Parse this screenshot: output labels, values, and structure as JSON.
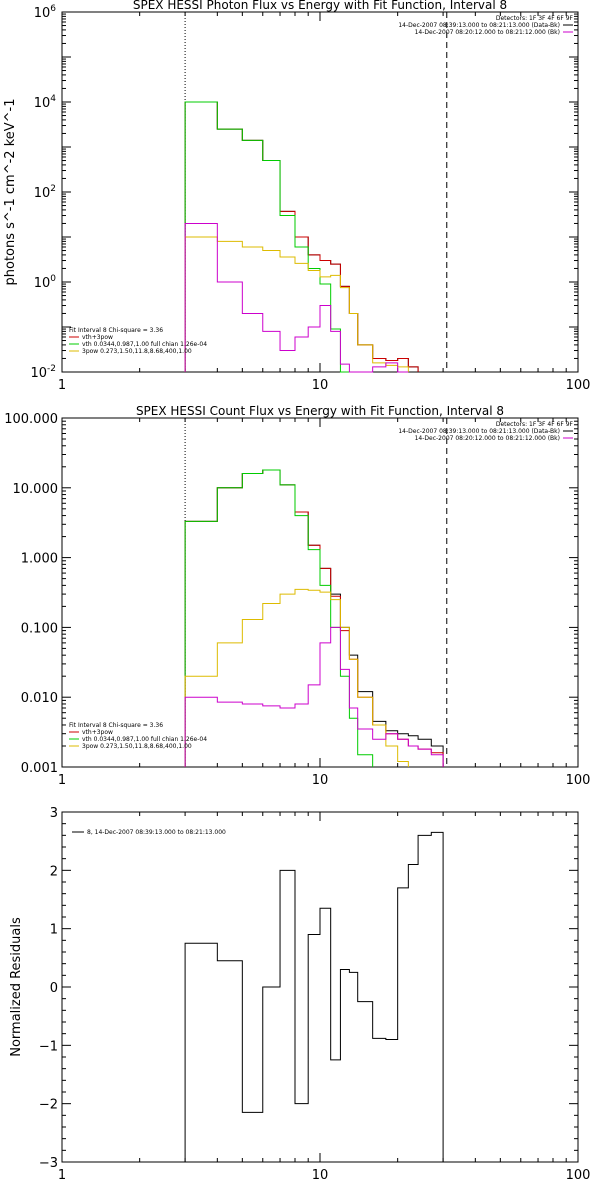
{
  "chart_data": [
    {
      "type": "line",
      "scale": "log-log",
      "title": "SPEX HESSI Photon Flux vs Energy with Fit Function, Interval 8",
      "ylabel": "photons s^-1 cm^-2 keV^-1",
      "xlim": [
        1,
        100
      ],
      "ylim": [
        0.01,
        1000000
      ],
      "xticks": [
        "1",
        "10",
        "100"
      ],
      "yticks": [
        {
          "value": 0.01,
          "base": "10",
          "exp": "-2"
        },
        {
          "value": 1,
          "base": "10",
          "exp": "0"
        },
        {
          "value": 100,
          "base": "10",
          "exp": "2"
        },
        {
          "value": 10000,
          "base": "10",
          "exp": "4"
        },
        {
          "value": 1000000,
          "base": "10",
          "exp": "6"
        }
      ],
      "vlines": [
        {
          "x": 3,
          "style": "dotted"
        },
        {
          "x": 31,
          "style": "dashed"
        }
      ],
      "legend_left": {
        "header": "Fit Interval 8   Chi-square = 3.36",
        "items": [
          {
            "label": "vth+3pow",
            "color": "#cc0000"
          },
          {
            "label": "vth 0.0344,0.987,1.00  full chian 1.26e-04",
            "color": "#00cc00"
          },
          {
            "label": "3pow 0.273,1.50,11.8,8.68,400,1.00",
            "color": "#ddbb00"
          }
        ]
      },
      "legend_right": {
        "header": "Detectors: 1F 3F 4F 6F 9F",
        "items": [
          {
            "label": "14-Dec-2007 08:39:13.000 to 08:21:13.000 (Data-Bk)",
            "color": "#000000"
          },
          {
            "label": "14-Dec-2007 08:20:12.000 to 08:21:12.000 (Bk)",
            "color": "#cc00cc"
          }
        ]
      },
      "edges": [
        3,
        4,
        5,
        6,
        7,
        8,
        9,
        10,
        11,
        12,
        13,
        14,
        16,
        18,
        20,
        22,
        24,
        27,
        30
      ],
      "series": [
        {
          "color": "#000000",
          "values": [
            10000,
            2500,
            1400,
            500,
            37,
            10,
            4,
            3,
            2.5,
            0.8,
            0.2,
            0.04,
            0.02,
            0.018,
            0.02,
            0.013,
            null,
            null
          ]
        },
        {
          "color": "#cc0000",
          "values": [
            10000,
            2500,
            1400,
            500,
            37,
            10,
            4,
            3,
            2.5,
            0.8,
            0.2,
            0.04,
            0.02,
            0.018,
            0.02,
            0.013,
            null,
            null
          ]
        },
        {
          "color": "#00cc00",
          "values": [
            10000,
            2500,
            1400,
            500,
            30,
            6,
            2,
            0.9,
            0.09,
            0.01,
            null,
            null,
            null,
            null,
            null,
            null,
            null,
            null
          ]
        },
        {
          "color": "#ddbb00",
          "values": [
            10,
            8,
            6,
            5,
            3.6,
            2.6,
            1.8,
            1.3,
            1.4,
            0.75,
            0.2,
            0.04,
            0.016,
            0.014,
            0.013,
            null,
            null,
            null
          ]
        },
        {
          "color": "#cc00cc",
          "values": [
            20,
            1,
            0.2,
            0.08,
            0.03,
            0.06,
            0.1,
            0.3,
            0.08,
            0.015,
            0.01,
            0.01,
            0.013,
            0.016,
            0.01,
            null,
            null,
            null
          ]
        }
      ]
    },
    {
      "type": "line",
      "scale": "log-log",
      "title": "SPEX HESSI Count Flux vs Energy with Fit Function, Interval 8",
      "xlim": [
        1,
        100
      ],
      "ylim": [
        0.001,
        100
      ],
      "xticks": [
        "1",
        "10",
        "100"
      ],
      "yticks": [
        {
          "value": 0.001,
          "label": "0.001"
        },
        {
          "value": 0.01,
          "label": "0.010"
        },
        {
          "value": 0.1,
          "label": "0.100"
        },
        {
          "value": 1,
          "label": "1.000"
        },
        {
          "value": 10,
          "label": "10.000"
        },
        {
          "value": 100,
          "label": "100.000"
        }
      ],
      "vlines": [
        {
          "x": 3,
          "style": "dotted"
        },
        {
          "x": 31,
          "style": "dashed"
        }
      ],
      "legend_left": {
        "header": "Fit Interval 8   Chi-square = 3.36",
        "items": [
          {
            "label": "vth+3pow",
            "color": "#cc0000"
          },
          {
            "label": "vth 0.0344,0.987,1.00  full chian 1.26e-04",
            "color": "#00cc00"
          },
          {
            "label": "3pow 0.273,1.50,11.8,8.68,400,1.00",
            "color": "#ddbb00"
          }
        ]
      },
      "legend_right": {
        "header": "Detectors: 1F 3F 4F 6F 9F",
        "items": [
          {
            "label": "14-Dec-2007 08:39:13.000 to 08:21:13.000 (Data-Bk)",
            "color": "#000000"
          },
          {
            "label": "14-Dec-2007 08:20:12.000 to 08:21:12.000 (Bk)",
            "color": "#cc00cc"
          }
        ]
      },
      "edges": [
        3,
        4,
        5,
        6,
        7,
        8,
        9,
        10,
        11,
        12,
        13,
        14,
        16,
        18,
        20,
        22,
        24,
        27,
        30
      ],
      "series": [
        {
          "color": "#000000",
          "values": [
            3.3,
            10,
            16,
            18,
            11,
            4.5,
            1.5,
            0.7,
            0.3,
            0.1,
            0.04,
            0.012,
            0.0045,
            0.0033,
            0.003,
            0.0028,
            0.0025,
            0.002
          ]
        },
        {
          "color": "#cc0000",
          "values": [
            3.3,
            10,
            16,
            18,
            11,
            4.5,
            1.5,
            0.7,
            0.28,
            0.09,
            0.035,
            0.01,
            0.004,
            0.003,
            0.0025,
            0.002,
            0.0018,
            0.0016
          ]
        },
        {
          "color": "#00cc00",
          "values": [
            3.3,
            10,
            16,
            18,
            11,
            4,
            1.3,
            0.4,
            0.1,
            0.02,
            0.005,
            0.0015,
            null,
            null,
            null,
            null,
            null,
            null
          ]
        },
        {
          "color": "#ddbb00",
          "values": [
            0.02,
            0.06,
            0.13,
            0.22,
            0.3,
            0.35,
            0.34,
            0.32,
            0.25,
            0.1,
            0.035,
            0.01,
            0.004,
            0.002,
            0.0012,
            null,
            null,
            null
          ]
        },
        {
          "color": "#cc00cc",
          "values": [
            0.01,
            0.0085,
            0.008,
            0.0075,
            0.007,
            0.008,
            0.015,
            0.06,
            0.1,
            0.025,
            0.007,
            0.0035,
            0.0025,
            0.003,
            0.0025,
            0.002,
            0.0018,
            0.0015
          ]
        }
      ]
    },
    {
      "type": "line",
      "scale": "log-linear",
      "ylabel": "Normalized Residuals",
      "xlim": [
        1,
        100
      ],
      "ylim": [
        -3,
        3
      ],
      "xticks": [
        "1",
        "10",
        "100"
      ],
      "yticks": [
        {
          "value": -3,
          "label": "−3"
        },
        {
          "value": -2,
          "label": "−2"
        },
        {
          "value": -1,
          "label": "−1"
        },
        {
          "value": 0,
          "label": "0"
        },
        {
          "value": 1,
          "label": "1"
        },
        {
          "value": 2,
          "label": "2"
        },
        {
          "value": 3,
          "label": "3"
        }
      ],
      "legend": {
        "label": "8, 14-Dec-2007 08:39:13.000 to 08:21:13.000",
        "color": "#000000"
      },
      "edges": [
        3,
        4,
        5,
        6,
        7,
        8,
        9,
        10,
        11,
        12,
        13,
        14,
        16,
        18,
        20,
        22,
        24,
        27,
        30
      ],
      "series": [
        {
          "color": "#000000",
          "values": [
            0.75,
            0.45,
            -2.15,
            0.0,
            2.0,
            -2.0,
            0.9,
            1.35,
            -1.25,
            0.3,
            0.25,
            -0.25,
            -0.88,
            -0.9,
            1.7,
            2.1,
            2.6,
            2.65
          ]
        }
      ]
    }
  ]
}
